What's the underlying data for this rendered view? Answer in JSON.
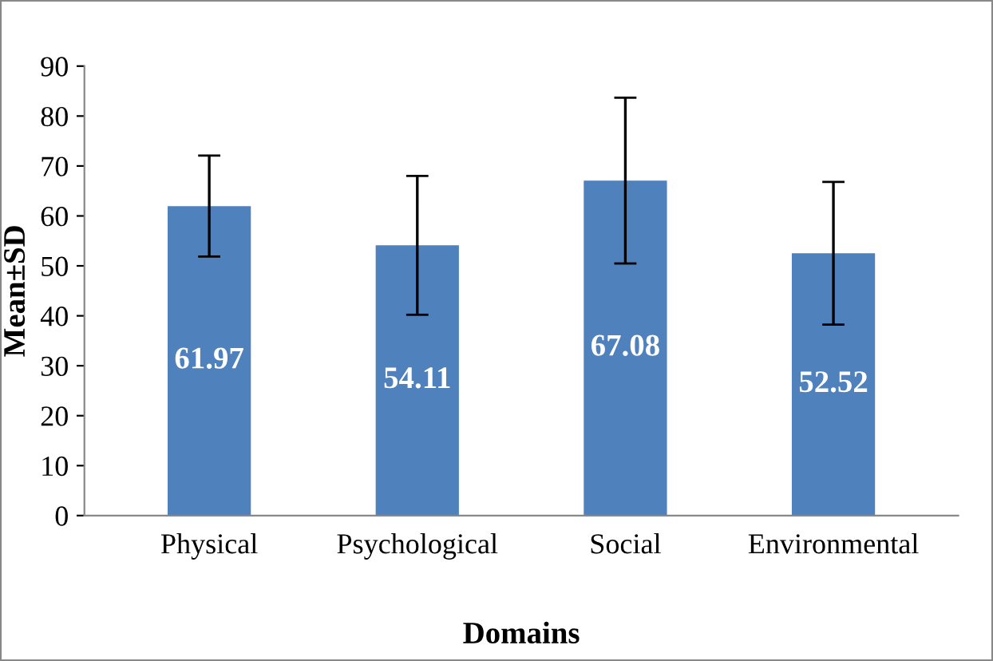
{
  "chart_data": {
    "type": "bar",
    "xlabel": "Domains",
    "ylabel": "Mean±SD",
    "categories": [
      "Physical",
      "Psychological",
      "Social",
      "Environmental"
    ],
    "values": [
      61.97,
      54.11,
      67.08,
      52.52
    ],
    "errors": [
      10.1,
      13.9,
      16.6,
      14.3
    ],
    "color": "#4f81bd",
    "ylim": [
      0,
      90
    ],
    "yticks": [
      0,
      10,
      20,
      30,
      40,
      50,
      60,
      70,
      80,
      90
    ],
    "data_labels": true,
    "grid": false
  }
}
